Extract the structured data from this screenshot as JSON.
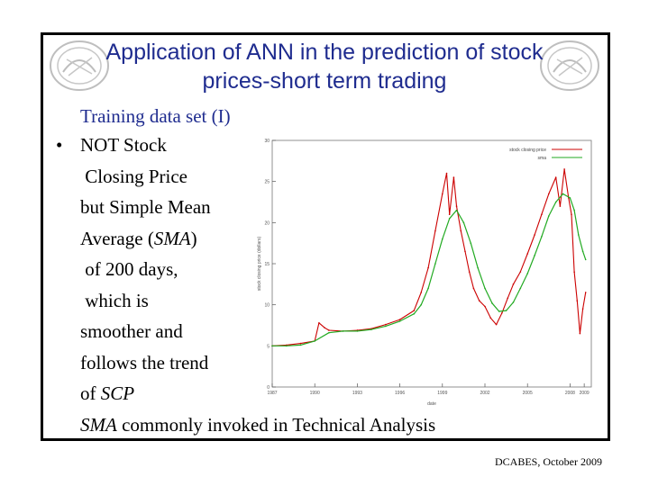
{
  "slide": {
    "title_line1": "Application of ANN in the prediction of stock",
    "title_line2": "prices-short term trading",
    "subtitle": "Training data set (I)",
    "bullet_lines": [
      "NOT Stock",
      " Closing Price",
      "but Simple Mean",
      "Average (SMA)",
      " of 200 days,",
      " which is",
      "smoother and",
      "follows the trend",
      "of SCP"
    ],
    "sma_note_italic": "SMA",
    "sma_note_rest": " commonly invoked in Technical Analysis",
    "footer": "DCABES, October 2009",
    "colors": {
      "title": "#1f2c8f",
      "frame": "#000000"
    }
  },
  "chart_data": {
    "type": "line",
    "title": "",
    "xlabel": "date",
    "ylabel": "stock closing price (dollars)",
    "xlim": [
      1987,
      2009.5
    ],
    "ylim": [
      0,
      30
    ],
    "x_ticks": [
      "1987",
      "1990",
      "1993",
      "1996",
      "1999",
      "2002",
      "2005",
      "2008",
      "2009"
    ],
    "x_tick_values": [
      1987,
      1990,
      1993,
      1996,
      1999,
      2002,
      2005,
      2008,
      2009
    ],
    "y_ticks": [
      "0",
      "5",
      "10",
      "15",
      "20",
      "25",
      "30"
    ],
    "y_tick_values": [
      0,
      5,
      10,
      15,
      20,
      25,
      30
    ],
    "legend_position": "top-right",
    "series": [
      {
        "name": "stock closing price",
        "color": "#cc0000",
        "x": [
          1987,
          1988,
          1989,
          1990,
          1990.3,
          1990.7,
          1991,
          1992,
          1993,
          1994,
          1995,
          1996,
          1997,
          1997.5,
          1998,
          1998.5,
          1999,
          1999.3,
          1999.5,
          1999.8,
          2000,
          2000.3,
          2000.6,
          2000.9,
          2001.2,
          2001.6,
          2002,
          2002.4,
          2002.8,
          2003.2,
          2003.6,
          2004,
          2004.5,
          2005,
          2005.5,
          2006,
          2006.5,
          2007,
          2007.3,
          2007.6,
          2007.9,
          2008.1,
          2008.3,
          2008.5,
          2008.7,
          2008.9,
          2009.1
        ],
        "y": [
          5.0,
          5.1,
          5.3,
          5.6,
          7.8,
          7.2,
          6.9,
          6.8,
          6.9,
          7.1,
          7.6,
          8.2,
          9.3,
          11.5,
          14.5,
          19.0,
          23.5,
          26.0,
          21.0,
          25.5,
          22.0,
          19.0,
          16.5,
          14.0,
          12.0,
          10.5,
          9.8,
          8.4,
          7.6,
          9.0,
          10.8,
          12.5,
          14.0,
          16.2,
          18.5,
          21.0,
          23.5,
          25.5,
          22.0,
          26.5,
          23.0,
          21.0,
          14.0,
          10.5,
          6.5,
          9.5,
          11.5
        ]
      },
      {
        "name": "sma",
        "color": "#22aa22",
        "x": [
          1987,
          1988,
          1989,
          1990,
          1991,
          1992,
          1993,
          1994,
          1995,
          1996,
          1997,
          1997.5,
          1998,
          1998.5,
          1999,
          1999.5,
          2000,
          2000.5,
          2001,
          2001.5,
          2002,
          2002.5,
          2003,
          2003.5,
          2004,
          2004.5,
          2005,
          2005.5,
          2006,
          2006.5,
          2007,
          2007.5,
          2008,
          2008.3,
          2008.6,
          2008.9,
          2009.1
        ],
        "y": [
          5.0,
          5.0,
          5.1,
          5.6,
          6.6,
          6.8,
          6.8,
          7.0,
          7.4,
          8.0,
          8.9,
          10.0,
          12.0,
          15.0,
          18.0,
          20.5,
          21.5,
          20.0,
          17.5,
          14.5,
          12.0,
          10.2,
          9.2,
          9.3,
          10.3,
          12.0,
          13.8,
          16.0,
          18.3,
          20.8,
          22.5,
          23.5,
          23.0,
          21.5,
          18.5,
          16.5,
          15.5
        ]
      }
    ]
  }
}
